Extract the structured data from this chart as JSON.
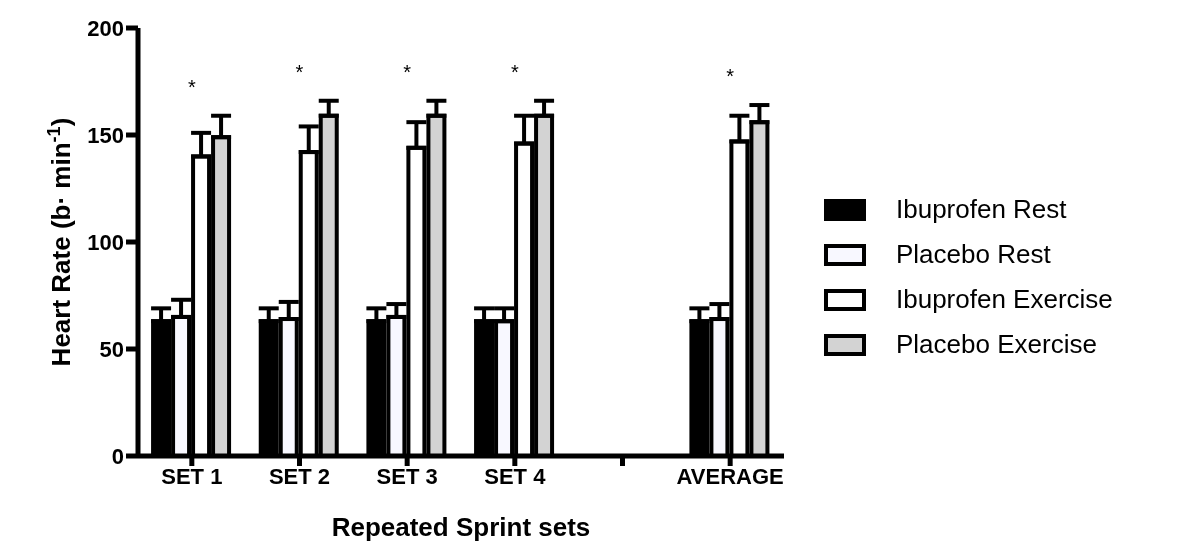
{
  "chart_data": {
    "type": "bar",
    "xlabel": "Repeated Sprint sets",
    "ylabel": "Heart Rate (b· min$^{-1}$)",
    "categories": [
      "SET 1",
      "SET 2",
      "SET 3",
      "SET 4",
      null,
      "AVERAGE"
    ],
    "series": [
      {
        "name": "Ibuprofen Rest",
        "color": "#000000",
        "values": [
          63,
          63,
          63,
          63,
          null,
          63
        ],
        "errors": [
          [
            63,
            69
          ],
          [
            63,
            69
          ],
          [
            63,
            69
          ],
          [
            63,
            69
          ],
          null,
          [
            63,
            69
          ]
        ]
      },
      {
        "name": "Placebo Rest",
        "color": "#f8f8ff",
        "values": [
          65,
          64,
          65,
          63,
          null,
          64
        ],
        "errors": [
          [
            65,
            73
          ],
          [
            64,
            72
          ],
          [
            65,
            71
          ],
          [
            63,
            69
          ],
          null,
          [
            64,
            71
          ]
        ]
      },
      {
        "name": "Ibuprofen Exercise",
        "color": "#ffffff",
        "values": [
          140,
          142,
          144,
          146,
          null,
          147
        ],
        "errors": [
          [
            140,
            151
          ],
          [
            142,
            154
          ],
          [
            144,
            156
          ],
          [
            146,
            159
          ],
          null,
          [
            147,
            159
          ]
        ]
      },
      {
        "name": "Placebo Exercise",
        "color": "#d3d3d3",
        "values": [
          149,
          159,
          159,
          159,
          null,
          156
        ],
        "errors": [
          [
            149,
            159
          ],
          [
            159,
            166
          ],
          [
            159,
            166
          ],
          [
            159,
            166
          ],
          null,
          [
            156,
            164
          ]
        ]
      }
    ],
    "ylim": [
      0,
      200
    ],
    "yticks": [
      0,
      50,
      100,
      150,
      200
    ],
    "annotations": [
      "*",
      "*",
      "*",
      "*",
      "*"
    ],
    "legend": "right",
    "grid": false
  }
}
